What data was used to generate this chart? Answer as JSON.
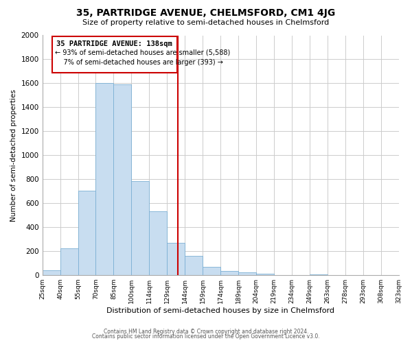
{
  "title": "35, PARTRIDGE AVENUE, CHELMSFORD, CM1 4JG",
  "subtitle": "Size of property relative to semi-detached houses in Chelmsford",
  "xlabel": "Distribution of semi-detached houses by size in Chelmsford",
  "ylabel": "Number of semi-detached properties",
  "bins": [
    "25sqm",
    "40sqm",
    "55sqm",
    "70sqm",
    "85sqm",
    "100sqm",
    "114sqm",
    "129sqm",
    "144sqm",
    "159sqm",
    "174sqm",
    "189sqm",
    "204sqm",
    "219sqm",
    "234sqm",
    "249sqm",
    "263sqm",
    "278sqm",
    "293sqm",
    "308sqm",
    "323sqm"
  ],
  "heights": [
    40,
    220,
    700,
    1600,
    1590,
    785,
    530,
    270,
    160,
    65,
    30,
    20,
    10,
    0,
    0,
    5,
    0,
    0,
    0,
    0,
    0
  ],
  "bar_color": "#c8ddf0",
  "bar_edgecolor": "#7bafd4",
  "property_line_color": "#cc0000",
  "annotation_title": "35 PARTRIDGE AVENUE: 138sqm",
  "annotation_line1": "← 93% of semi-detached houses are smaller (5,588)",
  "annotation_line2": "    7% of semi-detached houses are larger (393) →",
  "ylim": [
    0,
    2000
  ],
  "yticks": [
    0,
    200,
    400,
    600,
    800,
    1000,
    1200,
    1400,
    1600,
    1800,
    2000
  ],
  "footer1": "Contains HM Land Registry data © Crown copyright and database right 2024.",
  "footer2": "Contains public sector information licensed under the Open Government Licence v3.0.",
  "background_color": "#ffffff",
  "grid_color": "#cccccc",
  "bin_values": [
    25,
    40,
    55,
    70,
    85,
    100,
    114,
    129,
    144,
    159,
    174,
    189,
    204,
    219,
    234,
    249,
    263,
    278,
    293,
    308,
    323
  ],
  "property_sqm": 138
}
